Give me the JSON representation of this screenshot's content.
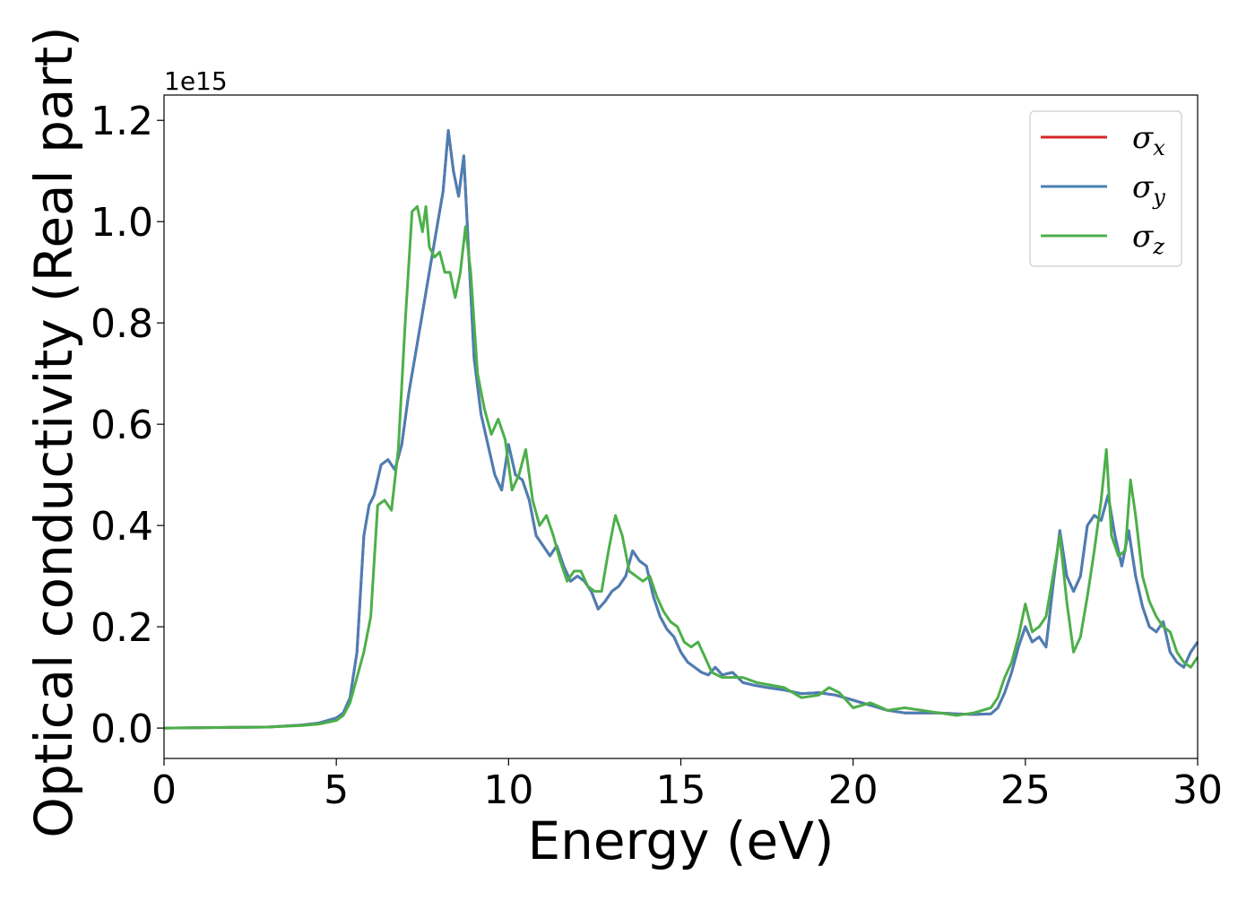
{
  "chart_data": {
    "type": "line",
    "title": "",
    "xlabel": "Energy (eV)",
    "ylabel": "Optical conductivity (Real part)",
    "y_offset_label": "1e15",
    "xlim": [
      0,
      30
    ],
    "ylim": [
      -0.06,
      1.25
    ],
    "xticks": [
      0,
      5,
      10,
      15,
      20,
      25,
      30
    ],
    "xtick_labels": [
      "0",
      "5",
      "10",
      "15",
      "20",
      "25",
      "30"
    ],
    "yticks": [
      0.0,
      0.2,
      0.4,
      0.6,
      0.8,
      1.0,
      1.2
    ],
    "ytick_labels": [
      "0.0",
      "0.2",
      "0.4",
      "0.6",
      "0.8",
      "1.0",
      "1.2"
    ],
    "grid": false,
    "legend_position": "top-right",
    "series": [
      {
        "name": "σx",
        "legend_symbol": "σ",
        "legend_subscript": "x",
        "color": "#d62728",
        "x": [
          0,
          3,
          4,
          4.5,
          5,
          5.2,
          5.4,
          5.6,
          5.8,
          5.95,
          6.1,
          6.3,
          6.5,
          6.7,
          6.9,
          7.1,
          7.3,
          7.5,
          7.7,
          7.9,
          8.1,
          8.25,
          8.4,
          8.55,
          8.7,
          8.85,
          9.0,
          9.2,
          9.4,
          9.6,
          9.8,
          10.0,
          10.2,
          10.4,
          10.6,
          10.8,
          11.0,
          11.2,
          11.4,
          11.6,
          11.8,
          12.0,
          12.2,
          12.4,
          12.6,
          12.8,
          13.0,
          13.2,
          13.4,
          13.6,
          13.8,
          14.0,
          14.2,
          14.4,
          14.6,
          14.8,
          15.0,
          15.2,
          15.4,
          15.6,
          15.8,
          16.0,
          16.2,
          16.5,
          16.8,
          17.1,
          17.5,
          18.0,
          18.5,
          19.0,
          19.5,
          20.0,
          20.5,
          21.0,
          21.5,
          22.0,
          22.5,
          23.0,
          23.5,
          24.0,
          24.2,
          24.4,
          24.6,
          24.8,
          25.0,
          25.2,
          25.4,
          25.6,
          25.8,
          26.0,
          26.2,
          26.4,
          26.6,
          26.8,
          27.0,
          27.2,
          27.4,
          27.6,
          27.8,
          28.0,
          28.2,
          28.4,
          28.6,
          28.8,
          29.0,
          29.2,
          29.4,
          29.6,
          29.8,
          30.0
        ],
        "values": [
          0.0,
          0.002,
          0.006,
          0.01,
          0.02,
          0.03,
          0.06,
          0.15,
          0.38,
          0.44,
          0.46,
          0.52,
          0.53,
          0.51,
          0.56,
          0.66,
          0.74,
          0.82,
          0.9,
          0.98,
          1.06,
          1.18,
          1.1,
          1.05,
          1.13,
          0.93,
          0.73,
          0.62,
          0.56,
          0.5,
          0.47,
          0.56,
          0.5,
          0.49,
          0.45,
          0.38,
          0.36,
          0.34,
          0.36,
          0.32,
          0.29,
          0.3,
          0.29,
          0.27,
          0.235,
          0.25,
          0.27,
          0.28,
          0.3,
          0.35,
          0.33,
          0.32,
          0.26,
          0.22,
          0.195,
          0.18,
          0.15,
          0.13,
          0.12,
          0.11,
          0.105,
          0.12,
          0.105,
          0.11,
          0.09,
          0.085,
          0.08,
          0.075,
          0.068,
          0.07,
          0.065,
          0.055,
          0.045,
          0.035,
          0.03,
          0.03,
          0.03,
          0.028,
          0.027,
          0.028,
          0.04,
          0.07,
          0.11,
          0.16,
          0.2,
          0.17,
          0.18,
          0.16,
          0.28,
          0.39,
          0.3,
          0.27,
          0.3,
          0.4,
          0.42,
          0.41,
          0.46,
          0.38,
          0.32,
          0.39,
          0.3,
          0.24,
          0.2,
          0.19,
          0.21,
          0.15,
          0.13,
          0.12,
          0.15,
          0.17
        ]
      },
      {
        "name": "σy",
        "legend_symbol": "σ",
        "legend_subscript": "y",
        "color": "#4a7fb5",
        "x": [
          0,
          3,
          4,
          4.5,
          5,
          5.2,
          5.4,
          5.6,
          5.8,
          5.95,
          6.1,
          6.3,
          6.5,
          6.7,
          6.9,
          7.1,
          7.3,
          7.5,
          7.7,
          7.9,
          8.1,
          8.25,
          8.4,
          8.55,
          8.7,
          8.85,
          9.0,
          9.2,
          9.4,
          9.6,
          9.8,
          10.0,
          10.2,
          10.4,
          10.6,
          10.8,
          11.0,
          11.2,
          11.4,
          11.6,
          11.8,
          12.0,
          12.2,
          12.4,
          12.6,
          12.8,
          13.0,
          13.2,
          13.4,
          13.6,
          13.8,
          14.0,
          14.2,
          14.4,
          14.6,
          14.8,
          15.0,
          15.2,
          15.4,
          15.6,
          15.8,
          16.0,
          16.2,
          16.5,
          16.8,
          17.1,
          17.5,
          18.0,
          18.5,
          19.0,
          19.5,
          20.0,
          20.5,
          21.0,
          21.5,
          22.0,
          22.5,
          23.0,
          23.5,
          24.0,
          24.2,
          24.4,
          24.6,
          24.8,
          25.0,
          25.2,
          25.4,
          25.6,
          25.8,
          26.0,
          26.2,
          26.4,
          26.6,
          26.8,
          27.0,
          27.2,
          27.4,
          27.6,
          27.8,
          28.0,
          28.2,
          28.4,
          28.6,
          28.8,
          29.0,
          29.2,
          29.4,
          29.6,
          29.8,
          30.0
        ],
        "values": [
          0.0,
          0.002,
          0.006,
          0.01,
          0.02,
          0.03,
          0.06,
          0.15,
          0.38,
          0.44,
          0.46,
          0.52,
          0.53,
          0.51,
          0.56,
          0.66,
          0.74,
          0.82,
          0.9,
          0.98,
          1.06,
          1.18,
          1.1,
          1.05,
          1.13,
          0.93,
          0.73,
          0.62,
          0.56,
          0.5,
          0.47,
          0.56,
          0.5,
          0.49,
          0.45,
          0.38,
          0.36,
          0.34,
          0.36,
          0.32,
          0.29,
          0.3,
          0.29,
          0.27,
          0.235,
          0.25,
          0.27,
          0.28,
          0.3,
          0.35,
          0.33,
          0.32,
          0.26,
          0.22,
          0.195,
          0.18,
          0.15,
          0.13,
          0.12,
          0.11,
          0.105,
          0.12,
          0.105,
          0.11,
          0.09,
          0.085,
          0.08,
          0.075,
          0.068,
          0.07,
          0.065,
          0.055,
          0.045,
          0.035,
          0.03,
          0.03,
          0.03,
          0.028,
          0.027,
          0.028,
          0.04,
          0.07,
          0.11,
          0.16,
          0.2,
          0.17,
          0.18,
          0.16,
          0.28,
          0.39,
          0.3,
          0.27,
          0.3,
          0.4,
          0.42,
          0.41,
          0.46,
          0.38,
          0.32,
          0.39,
          0.3,
          0.24,
          0.2,
          0.19,
          0.21,
          0.15,
          0.13,
          0.12,
          0.15,
          0.17
        ]
      },
      {
        "name": "σz",
        "legend_symbol": "σ",
        "legend_subscript": "z",
        "color": "#4daf4a",
        "x": [
          0,
          3,
          4,
          4.5,
          5,
          5.2,
          5.4,
          5.6,
          5.8,
          6.0,
          6.2,
          6.4,
          6.6,
          6.8,
          7.0,
          7.2,
          7.35,
          7.5,
          7.6,
          7.7,
          7.85,
          8.0,
          8.15,
          8.3,
          8.45,
          8.6,
          8.75,
          8.9,
          9.1,
          9.3,
          9.5,
          9.7,
          9.9,
          10.1,
          10.3,
          10.5,
          10.7,
          10.9,
          11.1,
          11.3,
          11.5,
          11.7,
          11.9,
          12.1,
          12.3,
          12.5,
          12.7,
          12.9,
          13.1,
          13.3,
          13.5,
          13.7,
          13.9,
          14.1,
          14.3,
          14.5,
          14.7,
          14.9,
          15.1,
          15.3,
          15.5,
          15.7,
          15.9,
          16.2,
          16.5,
          16.8,
          17.2,
          17.6,
          18.0,
          18.5,
          19.0,
          19.3,
          19.6,
          20.0,
          20.5,
          21.0,
          21.5,
          22.0,
          22.5,
          23.0,
          23.5,
          24.0,
          24.2,
          24.4,
          24.6,
          24.8,
          25.0,
          25.2,
          25.4,
          25.6,
          25.8,
          26.0,
          26.2,
          26.4,
          26.6,
          26.8,
          27.0,
          27.2,
          27.35,
          27.5,
          27.7,
          27.9,
          28.05,
          28.2,
          28.4,
          28.6,
          28.8,
          29.0,
          29.2,
          29.4,
          29.6,
          29.8,
          30.0
        ],
        "values": [
          0.0,
          0.002,
          0.005,
          0.008,
          0.015,
          0.025,
          0.05,
          0.1,
          0.15,
          0.22,
          0.44,
          0.45,
          0.43,
          0.55,
          0.8,
          1.02,
          1.03,
          0.98,
          1.03,
          0.95,
          0.93,
          0.94,
          0.9,
          0.9,
          0.85,
          0.9,
          0.99,
          0.9,
          0.7,
          0.63,
          0.58,
          0.61,
          0.57,
          0.47,
          0.5,
          0.55,
          0.45,
          0.4,
          0.42,
          0.38,
          0.33,
          0.29,
          0.31,
          0.31,
          0.28,
          0.27,
          0.27,
          0.35,
          0.42,
          0.38,
          0.31,
          0.3,
          0.29,
          0.3,
          0.26,
          0.23,
          0.21,
          0.2,
          0.17,
          0.16,
          0.17,
          0.14,
          0.11,
          0.1,
          0.1,
          0.1,
          0.09,
          0.085,
          0.08,
          0.06,
          0.065,
          0.08,
          0.07,
          0.04,
          0.05,
          0.035,
          0.04,
          0.035,
          0.03,
          0.025,
          0.03,
          0.04,
          0.06,
          0.1,
          0.13,
          0.18,
          0.245,
          0.19,
          0.2,
          0.22,
          0.3,
          0.38,
          0.25,
          0.15,
          0.18,
          0.26,
          0.35,
          0.45,
          0.55,
          0.38,
          0.34,
          0.35,
          0.49,
          0.42,
          0.3,
          0.25,
          0.22,
          0.2,
          0.19,
          0.15,
          0.13,
          0.12,
          0.14
        ]
      }
    ]
  }
}
